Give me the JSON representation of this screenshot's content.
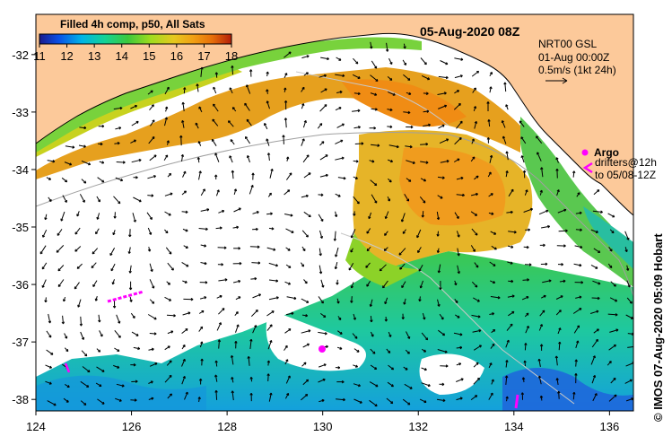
{
  "title": "Filled 4h comp, p50, All Sats",
  "date": "05-Aug-2020 08Z",
  "altimetry": {
    "line1": "NRT00 GSL",
    "line2": "01-Aug 00:00Z",
    "line3": "0.5m/s (1kt 24h)"
  },
  "legend": {
    "argo_label": "Argo",
    "drifters_line1": "drifters@12h",
    "drifters_line2": "to 05/08-12Z"
  },
  "credit": "© IMOS 07-Aug-2020 05:09 Hobart",
  "colorbar": {
    "min": 11,
    "max": 18,
    "ticks": [
      "11",
      "12",
      "13",
      "14",
      "15",
      "16",
      "17",
      "18"
    ],
    "colors": [
      "#0a1eb4",
      "#0a64e6",
      "#14b4dc",
      "#1ed296",
      "#3cd23c",
      "#a0dc1e",
      "#e6c81e",
      "#f0a014",
      "#e66e0a",
      "#b41e0a"
    ]
  },
  "axes": {
    "lon_ticks": [
      "124",
      "126",
      "128",
      "130",
      "132",
      "134",
      "136"
    ],
    "lat_ticks": [
      "-32",
      "-33",
      "-34",
      "-35",
      "-36",
      "-37",
      "-38"
    ],
    "lon_range": [
      124,
      136.5
    ],
    "lat_range": [
      -38.2,
      -31.3
    ]
  },
  "colors": {
    "land": "#fcc99a",
    "no_data": "#ffffff",
    "argo": "#ff00ff"
  }
}
